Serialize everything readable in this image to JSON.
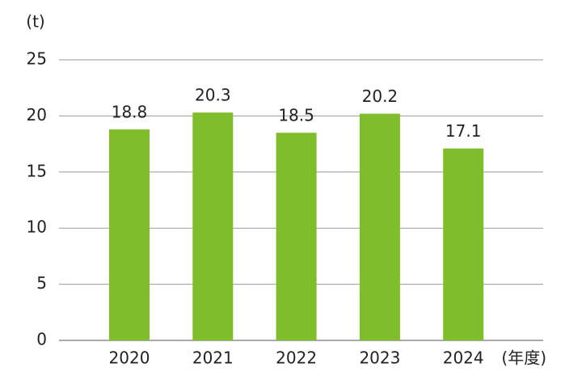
{
  "chart_data": {
    "type": "bar",
    "y_unit": "(t)",
    "x_unit": "(年度)",
    "categories": [
      "2020",
      "2021",
      "2022",
      "2023",
      "2024"
    ],
    "values": [
      18.8,
      20.3,
      18.5,
      20.2,
      17.1
    ],
    "color": "#80bd2a",
    "ylim": [
      0,
      25
    ],
    "yticks": [
      0,
      5,
      10,
      15,
      20,
      25
    ],
    "grid": true
  }
}
